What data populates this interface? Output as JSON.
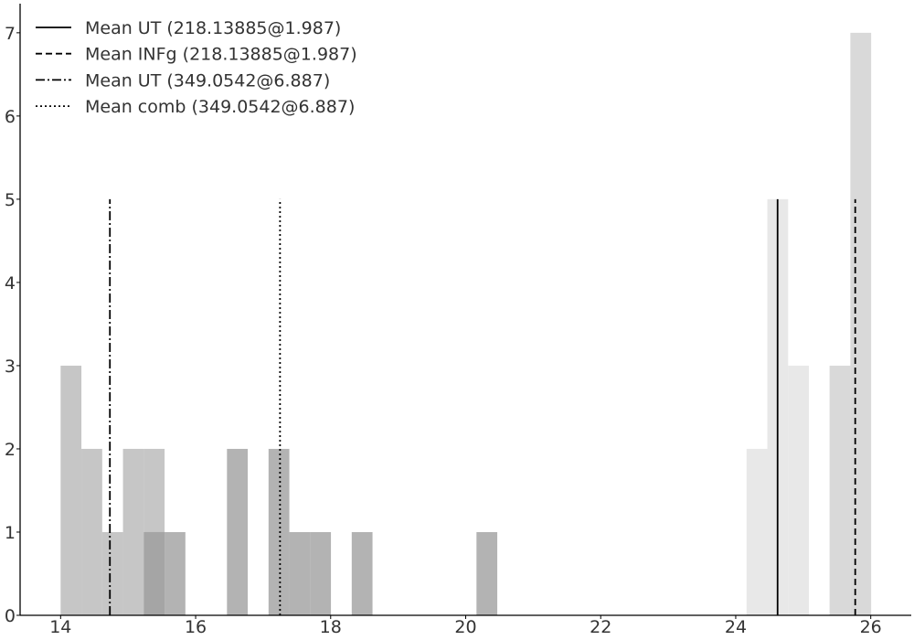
{
  "chart_data": {
    "type": "histogram",
    "xlim": [
      13.4,
      26.6
    ],
    "ylim": [
      0,
      7.35
    ],
    "x_ticks": [
      14,
      16,
      18,
      20,
      22,
      24,
      26
    ],
    "y_ticks": [
      0,
      1,
      2,
      3,
      4,
      5,
      6,
      7
    ],
    "grid": false,
    "legend_position": "top-left",
    "series": [
      {
        "color": "#b3b3b3",
        "bin_width": 0.308,
        "bins": [
          {
            "x0": 14.0,
            "count": 3
          },
          {
            "x0": 14.308,
            "count": 2
          },
          {
            "x0": 14.616,
            "count": 1
          },
          {
            "x0": 14.924,
            "count": 2
          },
          {
            "x0": 15.232,
            "count": 2
          }
        ]
      },
      {
        "color": "#999999",
        "bin_width": 0.308,
        "bins": [
          {
            "x0": 15.232,
            "count": 1
          },
          {
            "x0": 15.54,
            "count": 1
          },
          {
            "x0": 16.464,
            "count": 2
          },
          {
            "x0": 17.08,
            "count": 2
          },
          {
            "x0": 17.388,
            "count": 1
          },
          {
            "x0": 17.696,
            "count": 1
          },
          {
            "x0": 18.312,
            "count": 1
          },
          {
            "x0": 20.16,
            "count": 1
          }
        ]
      },
      {
        "color": "#e0e0e0",
        "bin_width": 0.308,
        "bins": [
          {
            "x0": 24.16,
            "count": 2
          },
          {
            "x0": 24.468,
            "count": 5
          },
          {
            "x0": 24.776,
            "count": 3
          }
        ]
      },
      {
        "color": "#cccccc",
        "bin_width": 0.308,
        "bins": [
          {
            "x0": 25.39,
            "count": 3
          },
          {
            "x0": 25.698,
            "count": 7
          }
        ]
      }
    ],
    "mean_lines": [
      {
        "name": "Mean UT (218.13885@1.987)",
        "x": 24.62,
        "ymax": 5,
        "dash": "solid"
      },
      {
        "name": "Mean INFg (218.13885@1.987)",
        "x": 25.77,
        "ymax": 5,
        "dash": "dashed"
      },
      {
        "name": "Mean UT (349.0542@6.887)",
        "x": 14.73,
        "ymax": 5,
        "dash": "dashdot"
      },
      {
        "name": "Mean comb (349.0542@6.887)",
        "x": 17.25,
        "ymax": 5,
        "dash": "dotted"
      }
    ]
  }
}
